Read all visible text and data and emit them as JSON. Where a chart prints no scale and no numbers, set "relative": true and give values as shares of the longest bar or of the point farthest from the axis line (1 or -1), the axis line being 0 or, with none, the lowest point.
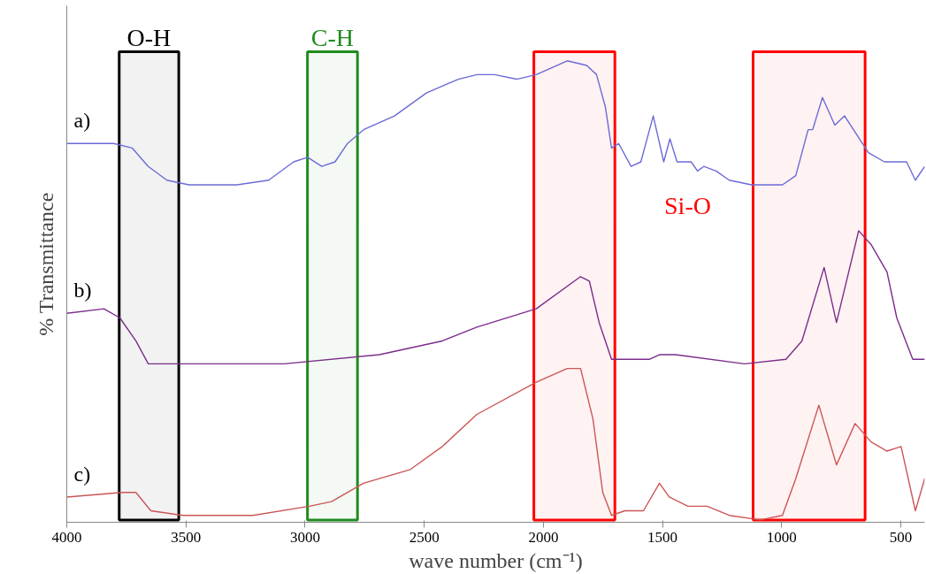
{
  "chart_data": {
    "type": "line",
    "relative": true,
    "xlabel": "wave number (cm⁻¹)",
    "ylabel": "% Transmittance",
    "xlim": [
      4000,
      400
    ],
    "xticks": [
      4000,
      3500,
      3000,
      2500,
      2000,
      1500,
      1000,
      500
    ],
    "tick_labels": "x",
    "grid": false,
    "series": [
      {
        "name": "a)",
        "color": "#6b6bd6",
        "x": [
          4000,
          3803,
          3725,
          3658,
          3580,
          3487,
          3286,
          3153,
          3048,
          2989,
          2930,
          2874,
          2822,
          2755,
          2625,
          2491,
          2357,
          2279,
          2205,
          2112,
          2030,
          1900,
          1818,
          1777,
          1740,
          1714,
          1684,
          1632,
          1591,
          1539,
          1495,
          1469,
          1439,
          1380,
          1353,
          1327,
          1275,
          1220,
          1127,
          997,
          941,
          889,
          870,
          829,
          777,
          736,
          636,
          569,
          476,
          439,
          400
        ],
        "values": [
          0.82,
          0.82,
          0.81,
          0.77,
          0.74,
          0.73,
          0.73,
          0.74,
          0.78,
          0.79,
          0.77,
          0.78,
          0.82,
          0.85,
          0.88,
          0.93,
          0.96,
          0.97,
          0.97,
          0.96,
          0.97,
          1.0,
          0.99,
          0.97,
          0.9,
          0.81,
          0.82,
          0.77,
          0.78,
          0.88,
          0.78,
          0.83,
          0.78,
          0.78,
          0.76,
          0.77,
          0.76,
          0.74,
          0.73,
          0.73,
          0.75,
          0.85,
          0.85,
          0.92,
          0.86,
          0.88,
          0.8,
          0.78,
          0.78,
          0.74,
          0.77
        ]
      },
      {
        "name": "b)",
        "color": "#7b2d8b",
        "x": [
          4000,
          3844,
          3777,
          3710,
          3658,
          3089,
          2688,
          2424,
          2279,
          2030,
          1844,
          1807,
          1766,
          1714,
          1554,
          1513,
          1446,
          1156,
          982,
          915,
          822,
          770,
          677,
          625,
          558,
          517,
          450,
          400
        ],
        "values": [
          0.45,
          0.46,
          0.44,
          0.39,
          0.34,
          0.34,
          0.36,
          0.39,
          0.42,
          0.46,
          0.53,
          0.52,
          0.43,
          0.35,
          0.35,
          0.36,
          0.36,
          0.34,
          0.35,
          0.39,
          0.55,
          0.43,
          0.63,
          0.6,
          0.54,
          0.44,
          0.35,
          0.35
        ]
      },
      {
        "name": "c)",
        "color": "#cc5555",
        "x": [
          4000,
          3766,
          3710,
          3647,
          3513,
          3219,
          2982,
          2889,
          2755,
          2558,
          2424,
          2279,
          2030,
          1900,
          1844,
          1792,
          1751,
          1714,
          1658,
          1580,
          1513,
          1472,
          1394,
          1313,
          1220,
          1090,
          997,
          941,
          844,
          770,
          692,
          625,
          558,
          499,
          439,
          400
        ],
        "values": [
          0.05,
          0.06,
          0.06,
          0.02,
          0.01,
          0.01,
          0.03,
          0.04,
          0.08,
          0.11,
          0.16,
          0.23,
          0.3,
          0.33,
          0.33,
          0.22,
          0.06,
          0.01,
          0.02,
          0.02,
          0.08,
          0.05,
          0.03,
          0.03,
          0.01,
          0.0,
          0.01,
          0.09,
          0.25,
          0.12,
          0.21,
          0.17,
          0.15,
          0.16,
          0.02,
          0.09
        ]
      }
    ],
    "bands": [
      {
        "axis": "x",
        "from": 3780,
        "to": 3530,
        "label": "O-H",
        "color": "#000000"
      },
      {
        "axis": "x",
        "from": 2990,
        "to": 2780,
        "label": "C-H",
        "color": "#1e8c1e"
      },
      {
        "axis": "x",
        "from": 2040,
        "to": 1700,
        "label": null,
        "color": "#ff0000"
      },
      {
        "axis": "x",
        "from": 1120,
        "to": 650,
        "label": null,
        "color": "#ff0000"
      }
    ],
    "annotations": [
      "Si-O"
    ]
  }
}
